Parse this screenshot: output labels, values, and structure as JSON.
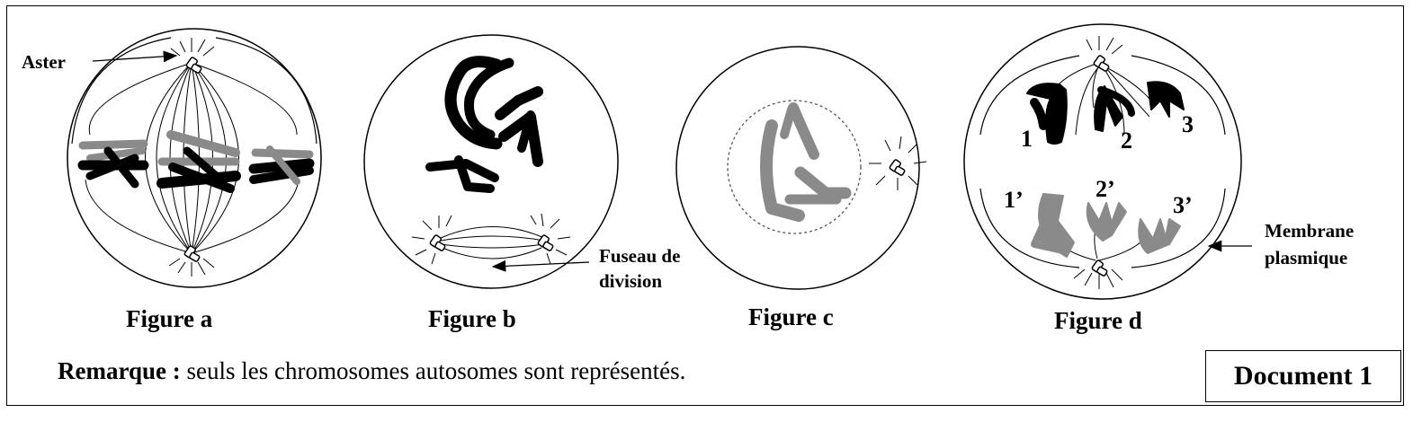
{
  "figures": {
    "a": {
      "caption": "Figure a",
      "label_aster": "Aster"
    },
    "b": {
      "caption": "Figure b",
      "label_fuseau_line1": "Fuseau de",
      "label_fuseau_line2": "division"
    },
    "c": {
      "caption": "Figure c"
    },
    "d": {
      "caption": "Figure d",
      "label_membrane_line1": "Membrane",
      "label_membrane_line2": "plasmique",
      "chromosome_numbers": [
        "1",
        "2",
        "3",
        "1’",
        "2’",
        "3’"
      ]
    }
  },
  "remarque": {
    "bold": "Remarque :",
    "text": " seuls les chromosomes autosomes sont représentés."
  },
  "document_label": "Document 1",
  "colors": {
    "dark_chromosome": "#000000",
    "grey_chromosome": "#8a8a8a",
    "outline": "#000000"
  }
}
